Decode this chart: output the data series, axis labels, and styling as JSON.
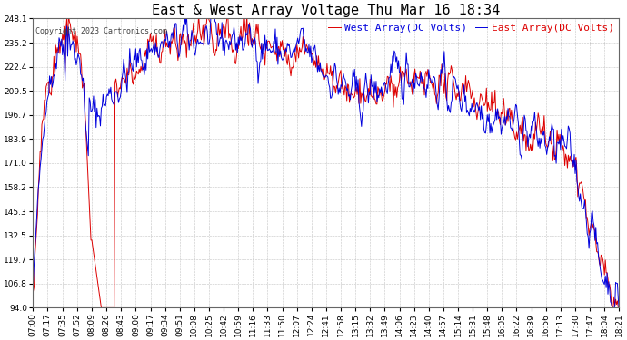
{
  "title": "East & West Array Voltage Thu Mar 16 18:34",
  "copyright": "Copyright 2023 Cartronics.com",
  "east_label": "East Array(DC Volts)",
  "west_label": "West Array(DC Volts)",
  "east_color": "#0000dd",
  "west_color": "#dd0000",
  "background_color": "#ffffff",
  "grid_color": "#999999",
  "title_fontsize": 11,
  "legend_fontsize": 8,
  "tick_fontsize": 6.5,
  "ylabel_values": [
    248.1,
    235.2,
    222.4,
    209.5,
    196.7,
    183.9,
    171.0,
    158.2,
    145.3,
    132.5,
    119.7,
    106.8,
    94.0
  ],
  "ymin": 94.0,
  "ymax": 248.1,
  "x_tick_labels": [
    "07:00",
    "07:17",
    "07:35",
    "07:52",
    "08:09",
    "08:26",
    "08:43",
    "09:00",
    "09:17",
    "09:34",
    "09:51",
    "10:08",
    "10:25",
    "10:42",
    "10:59",
    "11:16",
    "11:33",
    "11:50",
    "12:07",
    "12:24",
    "12:41",
    "12:58",
    "13:15",
    "13:32",
    "13:49",
    "14:06",
    "14:23",
    "14:40",
    "14:57",
    "15:14",
    "15:31",
    "15:48",
    "16:05",
    "16:22",
    "16:39",
    "16:56",
    "17:13",
    "17:30",
    "17:47",
    "18:04",
    "18:21"
  ],
  "seed": 42
}
